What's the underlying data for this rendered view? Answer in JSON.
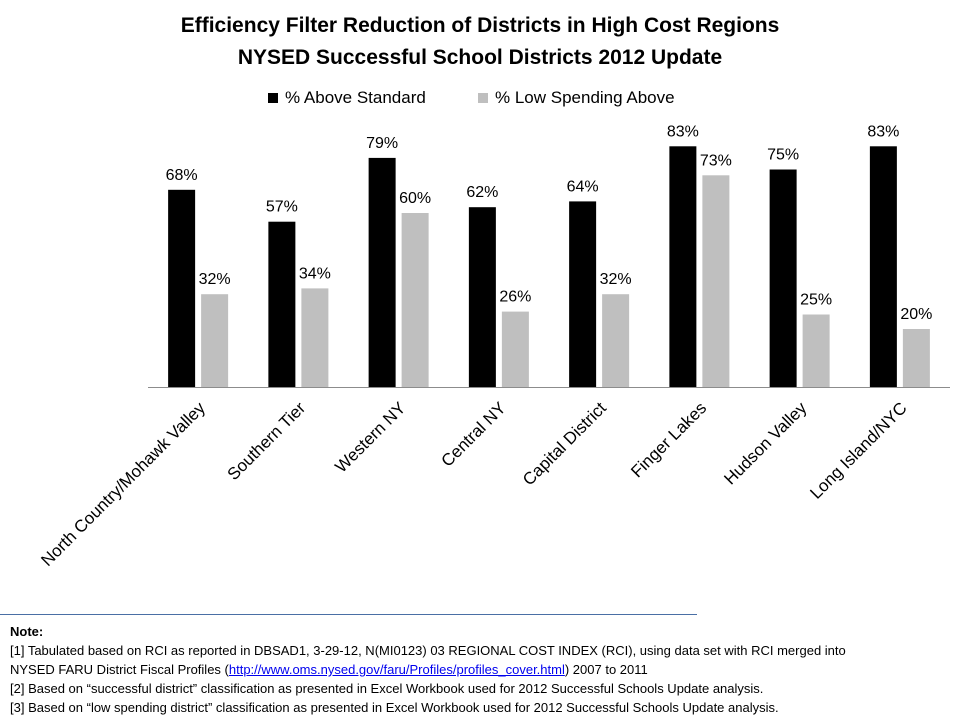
{
  "chart_data": {
    "type": "bar",
    "title": "Efficiency Filter Reduction of Districts in High Cost Regions",
    "subtitle": "NYSED Successful School Districts 2012 Update",
    "categories": [
      "North Country/Mohawk Valley",
      "Southern Tier",
      "Western NY",
      "Central NY",
      "Capital District",
      "Finger Lakes",
      "Hudson Valley",
      "Long Island/NYC"
    ],
    "series": [
      {
        "name": "% Above Standard",
        "color": "#000000",
        "values": [
          68,
          57,
          79,
          62,
          64,
          83,
          75,
          83
        ],
        "labels": [
          "68%",
          "57%",
          "79%",
          "62%",
          "64%",
          "83%",
          "75%",
          "83%"
        ]
      },
      {
        "name": "% Low Spending Above",
        "color": "#bfbfbf",
        "values": [
          32,
          34,
          60,
          26,
          32,
          73,
          25,
          20
        ],
        "labels": [
          "32%",
          "34%",
          "60%",
          "26%",
          "32%",
          "73%",
          "25%",
          "20%"
        ]
      }
    ],
    "ylim": [
      0,
      100
    ],
    "legend_position": "top",
    "grid": false
  },
  "notes": {
    "title": "Note:",
    "line1": "[1] Tabulated based on RCI as reported in DBSAD1, 3-29-12, N(MI0123) 03 REGIONAL COST INDEX (RCI), using data set with RCI merged into",
    "line2_prefix": "NYSED FARU District Fiscal Profiles (",
    "line2_link": "http://www.oms.nysed.gov/faru/Profiles/profiles_cover.html",
    "line2_suffix": ")  2007 to 2011",
    "line3": "[2] Based on “successful district” classification as presented in Excel Workbook  used for 2012 Successful Schools Update analysis.",
    "line4": "[3] Based on “low spending district” classification as presented in Excel Workbook  used for 2012 Successful Schools Update analysis."
  }
}
